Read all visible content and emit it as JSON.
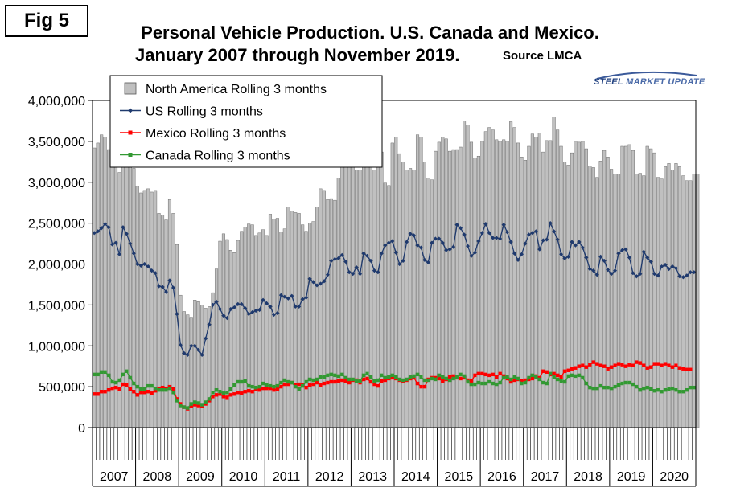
{
  "fig_label": "Fig 5",
  "title_line1": "Personal Vehicle Production. U.S. Canada and Mexico.",
  "title_line2": "January 2007 through November 2019.",
  "source": "Source LMCA",
  "logo": {
    "steel": "STEEL",
    "rest": " MARKET UPDATE"
  },
  "colors": {
    "bars": "#c0c0c0",
    "us": "#1f3a6e",
    "mexico": "#ff0000",
    "canada": "#339933",
    "frame": "#000000"
  },
  "chart_data": {
    "type": "bar",
    "title": "Personal Vehicle Production. U.S. Canada and Mexico. January 2007 through November 2019.",
    "xlabel": "",
    "ylabel": "",
    "ylim": [
      0,
      4000000
    ],
    "yticks": [
      "0",
      "500,000",
      "1,000,000",
      "1,500,000",
      "2,000,000",
      "2,500,000",
      "3,000,000",
      "3,500,000",
      "4,000,000"
    ],
    "years": [
      "2007",
      "2008",
      "2009",
      "2010",
      "2011",
      "2012",
      "2013",
      "2014",
      "2015",
      "2016",
      "2017",
      "2018",
      "2019",
      "2020"
    ],
    "grid": false,
    "legend_position": "top-left",
    "series": [
      {
        "name": "North America Rolling 3 months",
        "kind": "bar",
        "values": [
          3420000,
          3480000,
          3580000,
          3550000,
          3400000,
          3320000,
          3260000,
          3120000,
          3350000,
          3300000,
          3250000,
          3170000,
          2950000,
          2870000,
          2900000,
          2920000,
          2880000,
          2900000,
          2620000,
          2600000,
          2540000,
          2790000,
          2620000,
          2240000,
          1620000,
          1420000,
          1380000,
          1350000,
          1560000,
          1540000,
          1500000,
          1460000,
          1480000,
          1650000,
          1940000,
          2280000,
          2370000,
          2300000,
          2170000,
          2140000,
          2290000,
          2400000,
          2450000,
          2490000,
          2480000,
          2350000,
          2380000,
          2420000,
          2350000,
          2610000,
          2550000,
          2560000,
          2390000,
          2430000,
          2700000,
          2650000,
          2630000,
          2620000,
          2480000,
          2400000,
          2500000,
          2520000,
          2700000,
          2920000,
          2900000,
          2790000,
          2800000,
          2780000,
          3050000,
          3350000,
          3400000,
          3360000,
          3320000,
          3150000,
          3150000,
          3300000,
          3280000,
          3250000,
          3150000,
          3220000,
          3370000,
          2990000,
          2960000,
          3480000,
          3550000,
          3350000,
          3250000,
          3150000,
          3170000,
          3150000,
          3580000,
          3550000,
          3250000,
          3050000,
          3030000,
          3380000,
          3490000,
          3550000,
          3530000,
          3380000,
          3400000,
          3400000,
          3430000,
          3750000,
          3700000,
          3490000,
          3300000,
          3320000,
          3500000,
          3620000,
          3670000,
          3640000,
          3520000,
          3500000,
          3520000,
          3500000,
          3740000,
          3670000,
          3480000,
          3310000,
          3270000,
          3440000,
          3590000,
          3550000,
          3600000,
          3370000,
          3510000,
          3510000,
          3800000,
          3640000,
          3440000,
          3250000,
          3210000,
          3360000,
          3500000,
          3490000,
          3500000,
          3410000,
          3200000,
          3180000,
          3060000,
          3260000,
          3390000,
          3310000,
          3160000,
          3100000,
          3100000,
          3440000,
          3440000,
          3460000,
          3390000,
          3100000,
          3110000,
          3080000,
          3440000,
          3410000,
          3360000,
          3060000,
          3040000,
          3190000,
          3230000,
          3150000,
          3230000,
          3190000,
          3080000,
          3020000,
          3020000,
          3100000,
          3100000
        ]
      },
      {
        "name": "US Rolling 3 months",
        "kind": "line",
        "values": [
          2380000,
          2400000,
          2440000,
          2490000,
          2450000,
          2240000,
          2260000,
          2120000,
          2450000,
          2370000,
          2250000,
          2130000,
          2000000,
          1980000,
          2000000,
          1970000,
          1920000,
          1890000,
          1730000,
          1720000,
          1660000,
          1800000,
          1710000,
          1390000,
          1010000,
          910000,
          890000,
          1000000,
          1000000,
          950000,
          890000,
          1090000,
          1260000,
          1500000,
          1540000,
          1450000,
          1370000,
          1340000,
          1450000,
          1470000,
          1510000,
          1510000,
          1460000,
          1390000,
          1410000,
          1430000,
          1440000,
          1560000,
          1520000,
          1480000,
          1380000,
          1400000,
          1620000,
          1600000,
          1580000,
          1610000,
          1480000,
          1480000,
          1570000,
          1590000,
          1820000,
          1780000,
          1740000,
          1760000,
          1790000,
          1870000,
          2040000,
          2060000,
          2070000,
          2110000,
          2030000,
          1900000,
          1880000,
          1960000,
          1880000,
          2130000,
          2100000,
          2040000,
          1920000,
          1900000,
          2130000,
          2230000,
          2260000,
          2280000,
          2140000,
          2000000,
          2040000,
          2270000,
          2370000,
          2350000,
          2230000,
          2200000,
          2050000,
          2020000,
          2260000,
          2310000,
          2310000,
          2260000,
          2170000,
          2180000,
          2210000,
          2480000,
          2440000,
          2360000,
          2220000,
          2100000,
          2140000,
          2280000,
          2380000,
          2490000,
          2380000,
          2320000,
          2320000,
          2310000,
          2480000,
          2390000,
          2270000,
          2130000,
          2050000,
          2120000,
          2250000,
          2360000,
          2380000,
          2400000,
          2180000,
          2290000,
          2300000,
          2500000,
          2400000,
          2300000,
          2120000,
          2070000,
          2090000,
          2270000,
          2230000,
          2270000,
          2200000,
          2080000,
          1940000,
          1920000,
          1870000,
          2090000,
          2040000,
          1930000,
          1880000,
          1920000,
          2130000,
          2170000,
          2180000,
          2080000,
          1890000,
          1850000,
          1880000,
          2150000,
          2080000,
          2030000,
          1880000,
          1860000,
          1970000,
          1990000,
          1940000,
          1970000,
          1950000,
          1850000,
          1840000,
          1860000,
          1900000,
          1900000
        ]
      },
      {
        "name": "Mexico Rolling 3 months",
        "kind": "line",
        "values": [
          410000,
          410000,
          440000,
          440000,
          460000,
          480000,
          490000,
          470000,
          530000,
          520000,
          470000,
          440000,
          400000,
          430000,
          430000,
          440000,
          420000,
          450000,
          480000,
          490000,
          480000,
          500000,
          470000,
          350000,
          290000,
          250000,
          230000,
          260000,
          280000,
          270000,
          260000,
          290000,
          330000,
          380000,
          400000,
          410000,
          380000,
          370000,
          400000,
          410000,
          430000,
          420000,
          440000,
          450000,
          440000,
          470000,
          460000,
          480000,
          480000,
          480000,
          460000,
          470000,
          500000,
          530000,
          530000,
          550000,
          520000,
          530000,
          520000,
          490000,
          520000,
          530000,
          550000,
          520000,
          540000,
          550000,
          560000,
          560000,
          570000,
          580000,
          570000,
          550000,
          580000,
          580000,
          550000,
          590000,
          600000,
          560000,
          530000,
          510000,
          570000,
          580000,
          600000,
          610000,
          600000,
          580000,
          570000,
          580000,
          600000,
          610000,
          540000,
          500000,
          500000,
          590000,
          610000,
          610000,
          600000,
          570000,
          590000,
          620000,
          630000,
          610000,
          600000,
          610000,
          580000,
          570000,
          640000,
          660000,
          660000,
          650000,
          640000,
          650000,
          620000,
          660000,
          630000,
          600000,
          560000,
          580000,
          590000,
          570000,
          580000,
          590000,
          600000,
          630000,
          610000,
          690000,
          680000,
          650000,
          660000,
          640000,
          620000,
          690000,
          700000,
          720000,
          730000,
          750000,
          760000,
          740000,
          770000,
          800000,
          780000,
          760000,
          750000,
          720000,
          740000,
          760000,
          780000,
          770000,
          750000,
          770000,
          760000,
          800000,
          790000,
          760000,
          730000,
          740000,
          780000,
          780000,
          760000,
          780000,
          760000,
          740000,
          760000,
          730000,
          720000,
          710000,
          710000
        ]
      },
      {
        "name": "Canada Rolling 3 months",
        "kind": "line",
        "values": [
          650000,
          650000,
          680000,
          680000,
          640000,
          560000,
          550000,
          580000,
          650000,
          690000,
          610000,
          540000,
          500000,
          470000,
          470000,
          510000,
          510000,
          480000,
          460000,
          460000,
          460000,
          480000,
          430000,
          330000,
          270000,
          250000,
          240000,
          290000,
          310000,
          300000,
          280000,
          310000,
          350000,
          430000,
          460000,
          440000,
          420000,
          430000,
          470000,
          520000,
          560000,
          560000,
          570000,
          510000,
          500000,
          490000,
          500000,
          540000,
          520000,
          510000,
          500000,
          510000,
          550000,
          580000,
          560000,
          550000,
          500000,
          470000,
          510000,
          560000,
          590000,
          580000,
          590000,
          620000,
          620000,
          640000,
          650000,
          640000,
          630000,
          650000,
          610000,
          590000,
          590000,
          570000,
          570000,
          640000,
          660000,
          620000,
          570000,
          580000,
          640000,
          610000,
          620000,
          640000,
          620000,
          590000,
          580000,
          590000,
          620000,
          630000,
          650000,
          620000,
          580000,
          580000,
          600000,
          590000,
          640000,
          620000,
          600000,
          580000,
          600000,
          620000,
          650000,
          630000,
          560000,
          530000,
          530000,
          550000,
          540000,
          540000,
          560000,
          540000,
          530000,
          550000,
          610000,
          620000,
          590000,
          620000,
          600000,
          540000,
          550000,
          610000,
          640000,
          620000,
          590000,
          550000,
          540000,
          660000,
          620000,
          590000,
          570000,
          560000,
          630000,
          640000,
          630000,
          640000,
          610000,
          540000,
          490000,
          480000,
          480000,
          510000,
          490000,
          490000,
          480000,
          500000,
          520000,
          540000,
          550000,
          550000,
          530000,
          500000,
          460000,
          480000,
          490000,
          470000,
          450000,
          460000,
          440000,
          460000,
          470000,
          480000,
          460000,
          440000,
          440000,
          460000,
          490000,
          490000
        ]
      }
    ]
  }
}
